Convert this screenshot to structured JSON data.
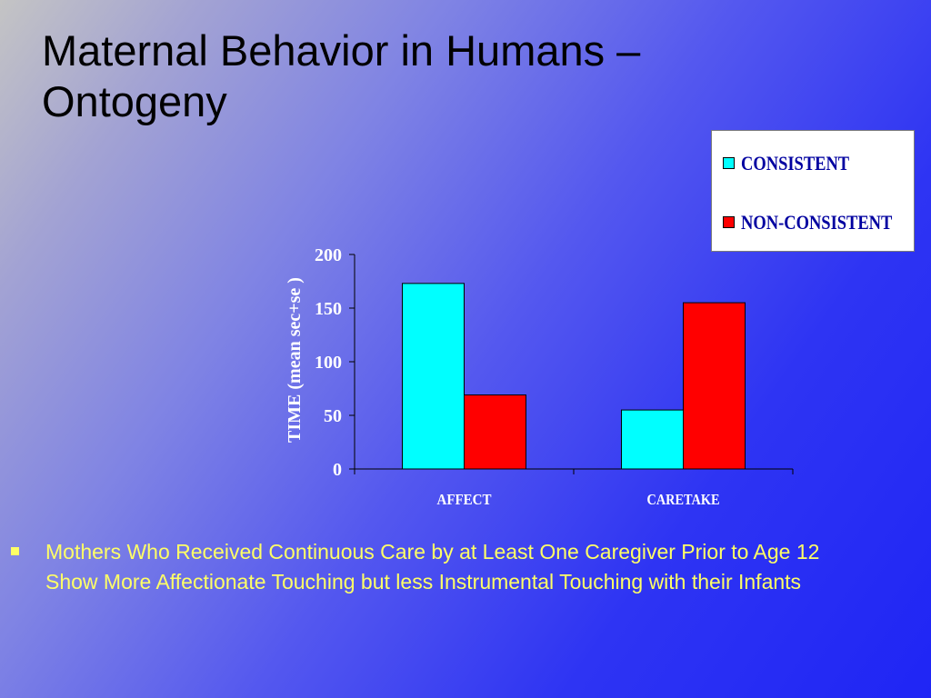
{
  "slide": {
    "title_line1": "Maternal Behavior in Humans –",
    "title_line2": "Ontogeny",
    "bullet_text": "Mothers Who Received Continuous Care by at Least One Caregiver Prior to Age 12 Show More Affectionate Touching  but less Instrumental Touching with their Infants"
  },
  "colors": {
    "consistent": "#00ffff",
    "non_consistent": "#ff0000",
    "legend_text": "#0000a0",
    "bullet_text": "#ffff66",
    "axis_text": "#ffffff"
  },
  "chart_data": {
    "type": "bar",
    "categories": [
      "AFFECT",
      "CARETAKE"
    ],
    "series": [
      {
        "name": "CONSISTENT",
        "values": [
          173,
          55
        ],
        "color": "#00ffff"
      },
      {
        "name": "NON-CONSISTENT",
        "values": [
          69,
          155
        ],
        "color": "#ff0000"
      }
    ],
    "title": "",
    "xlabel": "",
    "ylabel": "TIME (mean sec+se )",
    "ylim": [
      0,
      200
    ],
    "yticks": [
      0,
      50,
      100,
      150,
      200
    ],
    "grid": false,
    "legend": "top-right"
  }
}
